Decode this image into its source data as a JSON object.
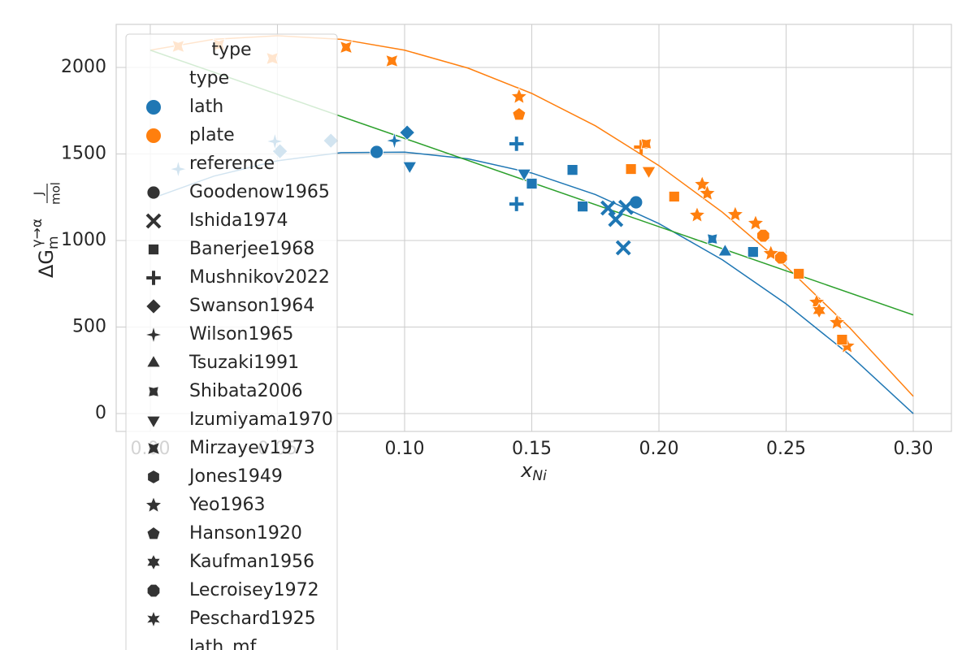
{
  "chart_data": {
    "type": "scatter",
    "xlabel": {
      "main": "x",
      "sub": "Ni"
    },
    "ylabel": {
      "main": "ΔG",
      "sub": "m",
      "sup": "γ→α",
      "unit_num": "J",
      "unit_den": "mol"
    },
    "xlim": [
      -0.0134,
      0.315
    ],
    "ylim": [
      -103,
      2249
    ],
    "xticks": [
      {
        "value": 0,
        "label": "0.00"
      },
      0.05,
      {
        "value": 0.1,
        "label": "0.10"
      },
      0.15,
      {
        "value": 0.2,
        "label": "0.20"
      },
      0.25,
      {
        "value": 0.3,
        "label": "0.30"
      }
    ],
    "yticks": [
      0,
      500,
      1000,
      1500,
      2000
    ],
    "grid": true,
    "legend": {
      "title": "type",
      "type_heading": "type",
      "types": [
        {
          "name": "lath",
          "color": "#1f77b4"
        },
        {
          "name": "plate",
          "color": "#ff7f0e"
        }
      ],
      "reference_heading": "reference",
      "references": [
        {
          "name": "Goodenow1965",
          "marker": "circle"
        },
        {
          "name": "Ishida1974",
          "marker": "x"
        },
        {
          "name": "Banerjee1968",
          "marker": "square"
        },
        {
          "name": "Mushnikov2022",
          "marker": "plus"
        },
        {
          "name": "Swanson1964",
          "marker": "diamond"
        },
        {
          "name": "Wilson1965",
          "marker": "star4"
        },
        {
          "name": "Tsuzaki1991",
          "marker": "triangle"
        },
        {
          "name": "Shibata2006",
          "marker": "concave4"
        },
        {
          "name": "Izumiyama1970",
          "marker": "triangle-down"
        },
        {
          "name": "Mirzayev1973",
          "marker": "star4x"
        },
        {
          "name": "Jones1949",
          "marker": "hexagon"
        },
        {
          "name": "Yeo1963",
          "marker": "star5"
        },
        {
          "name": "Hanson1920",
          "marker": "pentagon"
        },
        {
          "name": "Kaufman1956",
          "marker": "star6"
        },
        {
          "name": "Lecroisey1972",
          "marker": "octagon"
        },
        {
          "name": "Peschard1925",
          "marker": "star6b"
        }
      ],
      "line_entry": "lath_mf"
    },
    "groups": [
      {
        "type": "lath",
        "reference": "Goodenow1965",
        "x": [
          0.089,
          0.191
        ],
        "values": [
          1512,
          1221
        ]
      },
      {
        "type": "lath",
        "reference": "Ishida1974",
        "x": [
          0.18,
          0.183,
          0.186,
          0.187
        ],
        "values": [
          1188,
          1122,
          958,
          1192
        ]
      },
      {
        "type": "lath",
        "reference": "Banerjee1968",
        "x": [
          0.166,
          0.15,
          0.17,
          0.237
        ],
        "values": [
          1408,
          1329,
          1197,
          934
        ]
      },
      {
        "type": "lath",
        "reference": "Mushnikov2022",
        "x": [
          0.144,
          0.144
        ],
        "values": [
          1559,
          1211
        ]
      },
      {
        "type": "lath",
        "reference": "Swanson1964",
        "x": [
          0.051,
          0.071,
          0.101
        ],
        "values": [
          1516,
          1577,
          1624
        ]
      },
      {
        "type": "lath",
        "reference": "Wilson1965",
        "x": [
          0.011,
          0.049,
          0.096
        ],
        "values": [
          1413,
          1573,
          1577
        ]
      },
      {
        "type": "lath",
        "reference": "Tsuzaki1991",
        "x": [
          0.226
        ],
        "values": [
          934
        ]
      },
      {
        "type": "lath",
        "reference": "Shibata2006",
        "x": [
          0.221
        ],
        "values": [
          1009
        ]
      },
      {
        "type": "lath",
        "reference": "Izumiyama1970",
        "x": [
          0.102,
          0.147
        ],
        "values": [
          1432,
          1390
        ]
      },
      {
        "type": "plate",
        "reference": "Mirzayev1973",
        "x": [
          0.011,
          0.027,
          0.048,
          0.077,
          0.095
        ],
        "values": [
          2122,
          2131,
          2052,
          2117,
          2038
        ]
      },
      {
        "type": "plate",
        "reference": "Yeo1963",
        "x": [
          0.145,
          0.217,
          0.219,
          0.215,
          0.23,
          0.238,
          0.262,
          0.27,
          0.274,
          0.244
        ],
        "values": [
          1831,
          1324,
          1272,
          1146,
          1150,
          1099,
          643,
          526,
          390,
          925
        ]
      },
      {
        "type": "plate",
        "reference": "Hanson1920",
        "x": [
          0.145
        ],
        "values": [
          1728
        ]
      },
      {
        "type": "plate",
        "reference": "Lecroisey1972",
        "x": [
          0.241,
          0.248
        ],
        "values": [
          1028,
          901
        ]
      },
      {
        "type": "plate",
        "reference": "Banerjee1968",
        "x": [
          0.189,
          0.206,
          0.255,
          0.272
        ],
        "values": [
          1413,
          1254,
          808,
          427
        ]
      },
      {
        "type": "plate",
        "reference": "Mushnikov2022",
        "x": [
          0.193
        ],
        "values": [
          1540
        ]
      },
      {
        "type": "plate",
        "reference": "Izumiyama1970",
        "x": [
          0.196
        ],
        "values": [
          1404
        ]
      },
      {
        "type": "plate",
        "reference": "Kaufman1956",
        "x": [
          0.263
        ],
        "values": [
          596
        ]
      },
      {
        "type": "plate",
        "reference": "Shibata2006",
        "x": [
          0.195
        ],
        "values": [
          1559
        ]
      }
    ],
    "lines": [
      {
        "color": "#1f77b4",
        "x": [
          0,
          0.025,
          0.05,
          0.075,
          0.1,
          0.125,
          0.15,
          0.175,
          0.2,
          0.225,
          0.25,
          0.275,
          0.3
        ],
        "values": [
          1240,
          1372,
          1461,
          1508,
          1511,
          1472,
          1390,
          1266,
          1098,
          888,
          634,
          339,
          0
        ]
      },
      {
        "color": "#ff7f0e",
        "x": [
          0,
          0.025,
          0.05,
          0.075,
          0.1,
          0.125,
          0.15,
          0.175,
          0.2,
          0.225,
          0.25,
          0.275,
          0.3
        ],
        "values": [
          2100,
          2163,
          2183,
          2163,
          2100,
          1996,
          1850,
          1663,
          1433,
          1163,
          850,
          496,
          100
        ]
      },
      {
        "color": "#2ca02c",
        "x": [
          0,
          0.3
        ],
        "values": [
          2100,
          570
        ]
      }
    ]
  }
}
